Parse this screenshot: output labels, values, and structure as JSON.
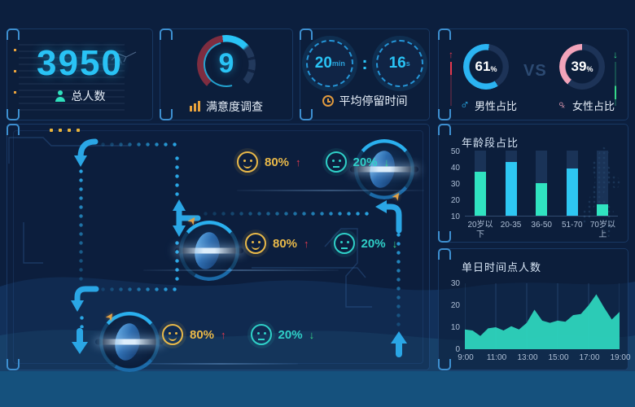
{
  "stats": {
    "total_visitors": {
      "value": "3950",
      "label": "总人数"
    },
    "satisfaction": {
      "value": "9",
      "label": "满意度调查"
    },
    "stay_time": {
      "minutes": "20",
      "minutes_unit": "min",
      "separator": ":",
      "seconds": "16",
      "seconds_unit": "s",
      "label": "平均停留时间"
    }
  },
  "gender": {
    "male": {
      "value": 61,
      "display": "61",
      "percent_sign": "%",
      "label": "男性占比",
      "color": "#2bb4f2",
      "track": "#1d3357",
      "glyph": "♂",
      "trend_glyph": "↑",
      "trend_color": "#e5394e"
    },
    "vs_label": "VS",
    "female": {
      "value": 39,
      "display": "39",
      "percent_sign": "%",
      "label": "女性占比",
      "color": "#f2a3ba",
      "track": "#1d3357",
      "glyph": "♀",
      "trend_glyph": "↓",
      "trend_color": "#36d98a"
    }
  },
  "flow": {
    "up_glyph": "↑",
    "down_glyph": "↓",
    "rows": [
      {
        "happy_pct": "80%",
        "sad_pct": "20%"
      },
      {
        "happy_pct": "80%",
        "sad_pct": "20%"
      },
      {
        "happy_pct": "80%",
        "sad_pct": "20%"
      }
    ],
    "colors": {
      "happy": "#e9b949",
      "sad": "#2fd0c8",
      "up": "#e5394e",
      "down": "#36d98a",
      "path": "#2aa6e5"
    }
  },
  "chart_data": [
    {
      "type": "bar",
      "title": "年龄段占比",
      "categories": [
        "20岁以下",
        "20-35",
        "36-50",
        "51-70",
        "70岁以上"
      ],
      "values": [
        37,
        43,
        30,
        39,
        17
      ],
      "y_ticks": [
        10,
        20,
        30,
        40,
        50
      ],
      "ylim": [
        10,
        50
      ],
      "bar_colors": [
        "#30e3c0",
        "#2ec7f2",
        "#30e3c0",
        "#2ec7f2",
        "#30e3c0"
      ],
      "grid": false,
      "xlabel": "",
      "ylabel": ""
    },
    {
      "type": "area",
      "title": "单日时间点人数",
      "x_ticks": [
        "9:00",
        "11:00",
        "13:00",
        "15:00",
        "17:00",
        "19:00"
      ],
      "values": [
        9,
        8.5,
        6,
        9.5,
        10,
        8.5,
        10.5,
        9,
        12,
        18,
        13,
        12,
        13,
        12.5,
        15.5,
        16,
        20,
        25,
        19,
        13.5,
        17
      ],
      "y_ticks": [
        0,
        10,
        20,
        30
      ],
      "ylim": [
        0,
        30
      ],
      "color": "#2fd9c0",
      "grid": true,
      "xlabel": "",
      "ylabel": ""
    }
  ]
}
